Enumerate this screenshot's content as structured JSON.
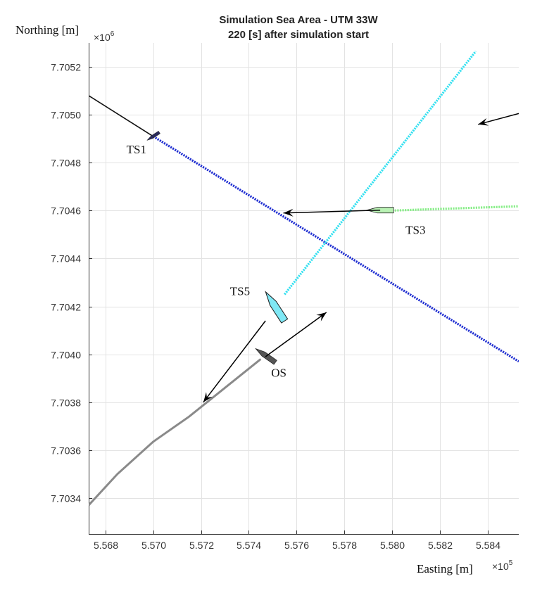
{
  "chart_data": {
    "type": "line",
    "title": "Simulation Sea Area - UTM 33W",
    "subtitle": "220 [s] after simulation start",
    "xlabel": "Easting [m]",
    "ylabel": "Northing [m]",
    "x_multiplier": {
      "base": "×10",
      "exp": "5"
    },
    "y_multiplier": {
      "base": "×10",
      "exp": "6"
    },
    "xlim": [
      556730,
      558530
    ],
    "ylim": [
      7703250,
      7705300
    ],
    "x_ticks": [
      556800,
      557000,
      557200,
      557400,
      557600,
      557800,
      558000,
      558200,
      558400
    ],
    "x_tick_labels": [
      "5.568",
      "5.570",
      "5.572",
      "5.574",
      "5.576",
      "5.578",
      "5.580",
      "5.582",
      "5.584"
    ],
    "y_ticks": [
      7703400,
      7703600,
      7703800,
      7704000,
      7704200,
      7704400,
      7704600,
      7704800,
      7705000,
      7705200
    ],
    "y_tick_labels": [
      "7.7034",
      "7.7036",
      "7.7038",
      "7.7040",
      "7.7042",
      "7.7044",
      "7.7046",
      "7.7048",
      "7.7050",
      "7.7052"
    ],
    "grid": true,
    "series": [
      {
        "name": "TS1",
        "color": "#1f2ed1",
        "style": "dotted",
        "x": [
          557000,
          558530
        ],
        "y": [
          7704910,
          7703970
        ]
      },
      {
        "name": "TS1 history",
        "color": "#111111",
        "style": "solid",
        "x": [
          556730,
          557000
        ],
        "y": [
          7705080,
          7704910
        ]
      },
      {
        "name": "TS3",
        "color": "#88ee88",
        "style": "dotted",
        "x": [
          558000,
          558530
        ],
        "y": [
          7704600,
          7704618
        ]
      },
      {
        "name": "TS5",
        "color": "#33e0f0",
        "style": "dotted",
        "x": [
          557550,
          558350
        ],
        "y": [
          7704250,
          7705265
        ]
      },
      {
        "name": "OS",
        "color": "#8a8a8a",
        "style": "solid",
        "x": [
          556730,
          556850,
          557000,
          557150,
          557300,
          557450
        ],
        "y": [
          7703370,
          7703500,
          7703635,
          7703740,
          7703860,
          7703980
        ]
      }
    ],
    "vessels": [
      {
        "name": "TS1",
        "x": 557000,
        "y": 7704910,
        "color": "#2a2a5a"
      },
      {
        "name": "TS3",
        "x": 557950,
        "y": 7704602,
        "color": "#b9f2b4"
      },
      {
        "name": "TS5",
        "x": 557510,
        "y": 7704200,
        "color": "#7fe8f5"
      },
      {
        "name": "OS",
        "x": 557470,
        "y": 7703995,
        "color": "#555555"
      }
    ],
    "arrows": [
      {
        "from": [
          557950,
          7704602
        ],
        "to": [
          557545,
          7704590
        ]
      },
      {
        "from": [
          557470,
          7704140
        ],
        "to": [
          557210,
          7703800
        ]
      },
      {
        "from": [
          557470,
          7703990
        ],
        "to": [
          557725,
          7704175
        ]
      },
      {
        "from": [
          558530,
          7705005
        ],
        "to": [
          558360,
          7704960
        ]
      }
    ]
  }
}
